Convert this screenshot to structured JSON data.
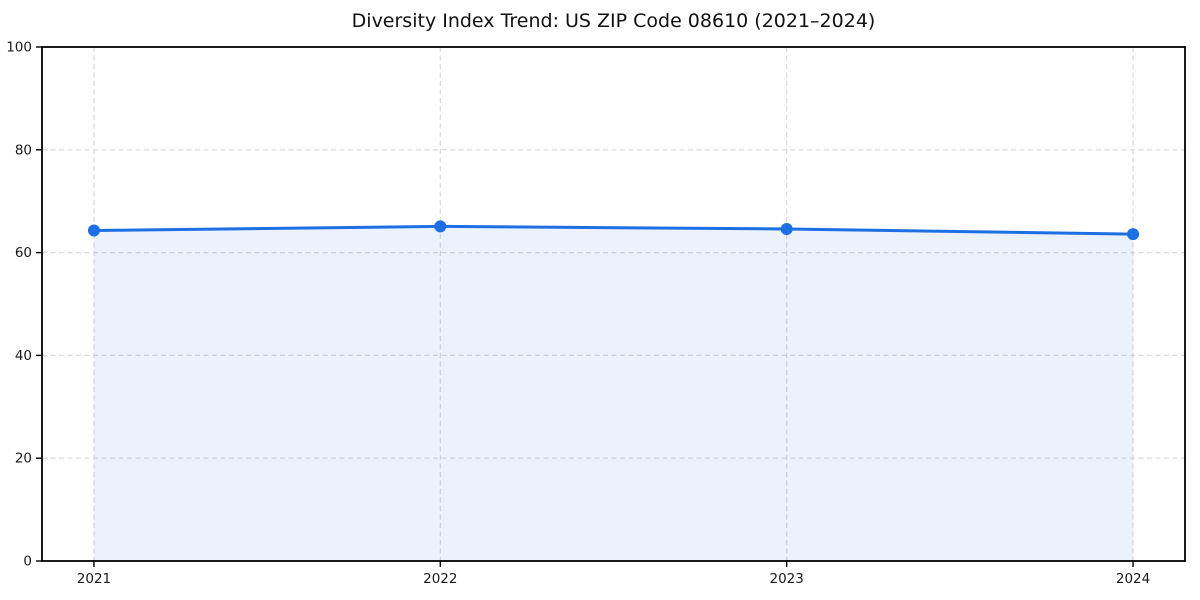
{
  "chart_data": {
    "type": "area",
    "title": "Diversity Index Trend: US ZIP Code 08610 (2021–2024)",
    "x": [
      2021,
      2022,
      2023,
      2024
    ],
    "series": [
      {
        "name": "Diversity Index",
        "values": [
          64.3,
          65.1,
          64.6,
          63.6
        ]
      }
    ],
    "xlabel": "",
    "ylabel": "",
    "xlim": [
      2020.85,
      2024.15
    ],
    "ylim": [
      0,
      100
    ],
    "xticks": [
      2021,
      2022,
      2023,
      2024
    ],
    "yticks": [
      0,
      20,
      40,
      60,
      80,
      100
    ],
    "grid": true,
    "grid_linestyle": "dashed",
    "legend_position": "none",
    "colors": {
      "line": "#1E6FE3",
      "marker": "#1E6FE3",
      "fill": "#1E6FE3",
      "fill_opacity": 0.09,
      "grid": "#d9d9d9",
      "spine": "#000000",
      "tick_text": "#1a1a1a",
      "background": "#ffffff"
    }
  }
}
